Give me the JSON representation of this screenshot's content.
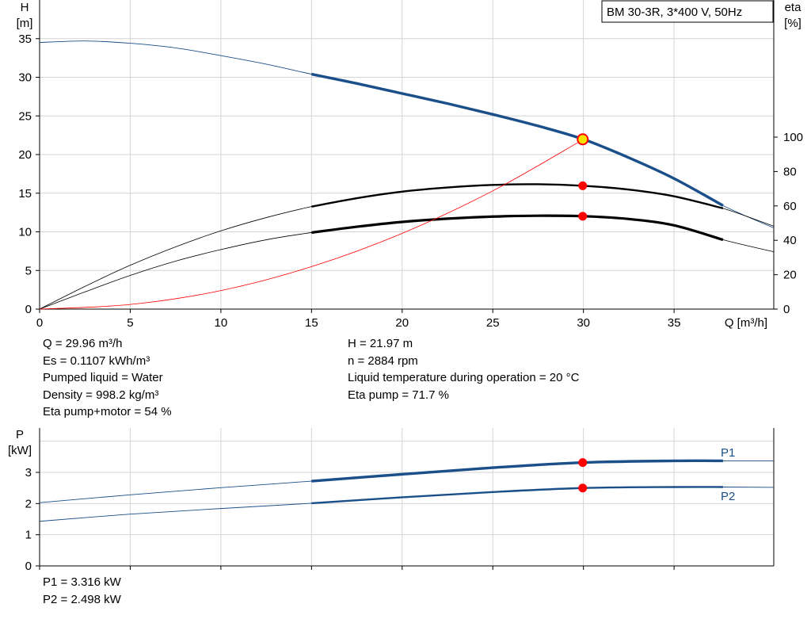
{
  "info": {
    "left": [
      "Q = 29.96 m³/h",
      "Es = 0.1107 kWh/m³",
      "Pumped liquid = Water",
      "Density = 998.2 kg/m³",
      "Eta pump+motor = 54 %"
    ],
    "right": [
      "H = 21.97 m",
      "n = 2884 rpm",
      "Liquid temperature during operation = 20 °C",
      "Eta pump = 71.7 %"
    ],
    "power": [
      "P1 = 3.316 kW",
      "P2 = 2.498 kW"
    ]
  },
  "chart_data": [
    {
      "type": "line",
      "title": "BM 30-3R, 3*400 V, 50Hz",
      "xlabel": "Q [m³/h]",
      "ylabel_left": [
        "H",
        "[m]"
      ],
      "ylabel_right": [
        "eta",
        "[%]"
      ],
      "xlim": [
        0,
        40.5
      ],
      "ylim_left": [
        0,
        40
      ],
      "ylim_right": [
        0,
        100
      ],
      "x_ticks": [
        0,
        5,
        10,
        15,
        20,
        25,
        30,
        35
      ],
      "y_ticks_left": [
        0,
        5,
        10,
        15,
        20,
        25,
        30,
        35
      ],
      "y_ticks_right": [
        0,
        20,
        40,
        60,
        80,
        100
      ],
      "grid": true,
      "colors": {
        "head": "#1a4f8a",
        "efficiency": "#000000",
        "system": "#ff0000",
        "operating_point": "#ff0000",
        "duty_marker_fill": "#ffe100"
      },
      "series": [
        {
          "id": "head",
          "axis": "left",
          "x": [
            0,
            2.5,
            5,
            7.5,
            10,
            12.5,
            15,
            17.5,
            20,
            22.5,
            25,
            27.5,
            30,
            32.5,
            35,
            37.7,
            40.5
          ],
          "y": [
            34.5,
            34.7,
            34.4,
            33.8,
            32.8,
            31.7,
            30.4,
            29.2,
            27.9,
            26.6,
            25.2,
            23.7,
            21.97,
            19.6,
            16.9,
            13.4,
            10.5
          ],
          "bold_range": [
            15,
            37.7
          ]
        },
        {
          "id": "eta_pump",
          "axis": "right",
          "x": [
            0,
            2.5,
            5,
            7.5,
            10,
            12.5,
            15,
            17.5,
            20,
            22.5,
            25,
            27.5,
            30,
            32.5,
            35,
            37.7,
            40.5
          ],
          "y": [
            0,
            13.2,
            25.5,
            36.2,
            45.5,
            53.2,
            59.6,
            64.5,
            68.3,
            70.7,
            72.2,
            72.6,
            71.7,
            69.5,
            65.6,
            58.6,
            48.2
          ],
          "bold_range": [
            15,
            37.7
          ]
        },
        {
          "id": "eta_pump_motor",
          "axis": "right",
          "x": [
            0,
            2.5,
            5,
            7.5,
            10,
            12.5,
            15,
            17.5,
            20,
            22.5,
            25,
            27.5,
            30,
            32.5,
            35,
            37.7,
            40.5
          ],
          "y": [
            0,
            10.0,
            19.6,
            27.9,
            34.6,
            40.3,
            44.5,
            47.9,
            50.7,
            52.6,
            53.8,
            54.3,
            54.0,
            52.4,
            48.7,
            40.3,
            33.3
          ],
          "bold_range": [
            15,
            37.7
          ]
        },
        {
          "id": "system_curve",
          "axis": "left",
          "x": [
            0,
            5,
            10,
            15,
            20,
            25,
            30
          ],
          "y": [
            0,
            0.6,
            2.4,
            5.5,
            9.8,
            15.3,
            21.97
          ],
          "bold_range": null
        }
      ],
      "operating_points": [
        {
          "x": 29.96,
          "y": 21.97,
          "axis": "left",
          "marker": "duty"
        },
        {
          "x": 29.96,
          "y": 71.7,
          "axis": "right",
          "marker": "dot"
        },
        {
          "x": 29.96,
          "y": 54,
          "axis": "right",
          "marker": "dot"
        }
      ]
    },
    {
      "type": "line",
      "ylabel": [
        "P",
        "[kW]"
      ],
      "xlim": [
        0,
        40.5
      ],
      "ylim": [
        0,
        4
      ],
      "x_ticks": [
        0,
        5,
        10,
        15,
        20,
        25,
        30,
        35
      ],
      "y_ticks": [
        0,
        1,
        2,
        3
      ],
      "grid": true,
      "colors": {
        "line": "#1a4f8a",
        "operating_point": "#ff0000"
      },
      "series": [
        {
          "name": "P1",
          "x": [
            0,
            5,
            10,
            15,
            20,
            25,
            30,
            35,
            37.7,
            40.5
          ],
          "y": [
            2.03,
            2.28,
            2.51,
            2.72,
            2.94,
            3.15,
            3.316,
            3.37,
            3.37,
            3.37
          ],
          "bold_range": [
            15,
            37.7
          ]
        },
        {
          "name": "P2",
          "x": [
            0,
            5,
            10,
            15,
            20,
            25,
            30,
            35,
            37.7,
            40.5
          ],
          "y": [
            1.43,
            1.66,
            1.84,
            2.01,
            2.2,
            2.37,
            2.498,
            2.53,
            2.53,
            2.52
          ],
          "bold_range": [
            15,
            37.7
          ]
        }
      ],
      "operating_points": [
        {
          "x": 29.96,
          "y": 3.316
        },
        {
          "x": 29.96,
          "y": 2.498
        }
      ]
    }
  ]
}
